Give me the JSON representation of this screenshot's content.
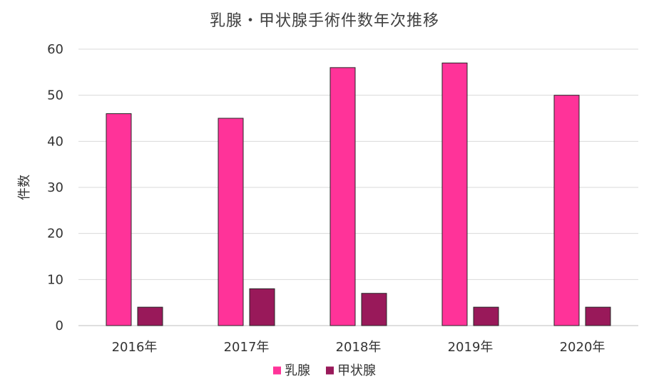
{
  "chart_data": {
    "type": "bar",
    "title": "乳腺・甲状腺手術件数年次推移",
    "xlabel": "",
    "ylabel": "件数",
    "categories": [
      "2016年",
      "2017年",
      "2018年",
      "2019年",
      "2020年"
    ],
    "series": [
      {
        "name": "乳腺",
        "color": "#FF3399",
        "values": [
          46,
          45,
          56,
          57,
          50
        ]
      },
      {
        "name": "甲状腺",
        "color": "#99195A",
        "values": [
          4,
          8,
          7,
          4,
          4
        ]
      }
    ],
    "ylim": [
      0,
      60
    ],
    "yticks": [
      "0",
      "10",
      "20",
      "30",
      "40",
      "50",
      "60"
    ],
    "grid": true,
    "legend": "bottom"
  }
}
